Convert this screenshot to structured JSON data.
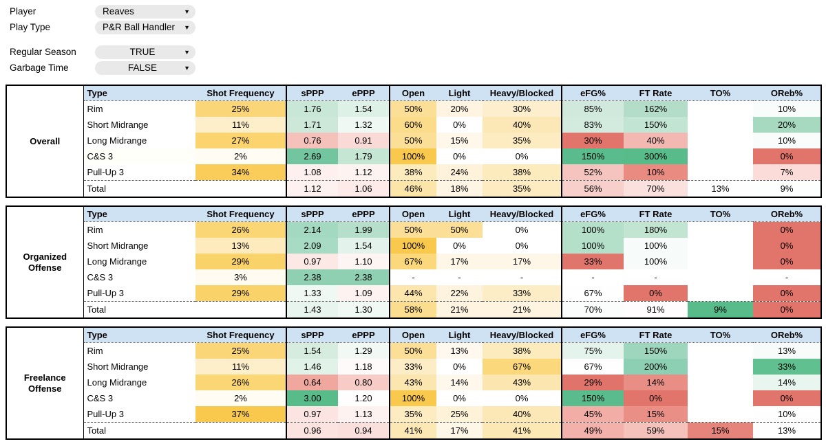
{
  "controls": {
    "items": [
      {
        "label": "Player",
        "value": "Reaves",
        "align": "left"
      },
      {
        "label": "Play Type",
        "value": "P&R Ball Handler",
        "align": "left"
      },
      {
        "label": "Regular Season",
        "value": "TRUE",
        "align": "center"
      },
      {
        "label": "Garbage Time",
        "value": "FALSE",
        "align": "center"
      }
    ],
    "dropdown_arrow_icon": "▼"
  },
  "colors": {
    "header_bg": "#cfe2f3",
    "positive_full": "#57bb8a",
    "negative_full": "#e1746b",
    "frequency_full": "#f9c94e",
    "dropdown_bg": "#e9e9e9"
  },
  "table_columns": [
    "Type",
    "Shot Frequency",
    "sPPP",
    "ePPP",
    "Open",
    "Light",
    "Heavy/Blocked",
    "eFG%",
    "FT Rate",
    "TO%",
    "OReb%"
  ],
  "tables": [
    {
      "section": "Overall",
      "rows": [
        {
          "cells": [
            [
              "Rim",
              "#ffffff"
            ],
            [
              "25%",
              "#fbd678"
            ],
            [
              "1.76",
              "#c9e7d6"
            ],
            [
              "1.54",
              "#def1e7"
            ],
            [
              "50%",
              "#fcdf96"
            ],
            [
              "20%",
              "#fef4e1"
            ],
            [
              "30%",
              "#fdefcd"
            ],
            [
              "85%",
              "#d0e9dc"
            ],
            [
              "162%",
              "#b3ddc9"
            ],
            [
              "",
              "#ffffff"
            ],
            [
              "10%",
              "#f8fcfa"
            ]
          ]
        },
        {
          "cells": [
            [
              "Short Midrange",
              "#ffffff"
            ],
            [
              "11%",
              "#fdefc9"
            ],
            [
              "1.71",
              "#cde8d9"
            ],
            [
              "1.32",
              "#eff8f3"
            ],
            [
              "60%",
              "#fbdc8b"
            ],
            [
              "0%",
              "#ffffff"
            ],
            [
              "40%",
              "#fce8b6"
            ],
            [
              "83%",
              "#d3ebde"
            ],
            [
              "150%",
              "#c2e4d2"
            ],
            [
              "",
              "#ffffff"
            ],
            [
              "20%",
              "#a6d9c0"
            ]
          ]
        },
        {
          "cells": [
            [
              "Long Midrange",
              "#ffffff"
            ],
            [
              "27%",
              "#fbd470"
            ],
            [
              "0.76",
              "#f4c1bb"
            ],
            [
              "0.91",
              "#f9dad6"
            ],
            [
              "50%",
              "#fcdf96"
            ],
            [
              "15%",
              "#fef7ea"
            ],
            [
              "35%",
              "#fdecc2"
            ],
            [
              "30%",
              "#e1746b"
            ],
            [
              "40%",
              "#f3b8b2"
            ],
            [
              "",
              "#ffffff"
            ],
            [
              "10%",
              "#f8fcfa"
            ]
          ]
        },
        {
          "cells": [
            [
              "C&S 3",
              "#fffffa"
            ],
            [
              "2%",
              "#fffcf4"
            ],
            [
              "2.69",
              "#72c59e"
            ],
            [
              "1.79",
              "#c6e6d4"
            ],
            [
              "100%",
              "#f9c94e"
            ],
            [
              "0%",
              "#ffffff"
            ],
            [
              "0%",
              "#ffffff"
            ],
            [
              "150%",
              "#5abc8c"
            ],
            [
              "300%",
              "#57bb8a"
            ],
            [
              "",
              "#ffffff"
            ],
            [
              "0%",
              "#e1746b"
            ]
          ]
        },
        {
          "cells": [
            [
              "Pull-Up 3",
              "#ffffff"
            ],
            [
              "34%",
              "#facd5b"
            ],
            [
              "1.08",
              "#fdf0ee"
            ],
            [
              "1.12",
              "#fdf3f1"
            ],
            [
              "38%",
              "#fcebbd"
            ],
            [
              "24%",
              "#fef2da"
            ],
            [
              "38%",
              "#fcebbd"
            ],
            [
              "52%",
              "#f5c4be"
            ],
            [
              "10%",
              "#ea8b81"
            ],
            [
              "",
              "#ffffff"
            ],
            [
              "7%",
              "#fbdcd8"
            ]
          ]
        },
        {
          "total": true,
          "cells": [
            [
              "Total",
              "#ffffff"
            ],
            [
              "",
              "#ffffff"
            ],
            [
              "1.12",
              "#fdf2f0"
            ],
            [
              "1.06",
              "#fcebe8"
            ],
            [
              "46%",
              "#fce5a8"
            ],
            [
              "18%",
              "#fef5e5"
            ],
            [
              "35%",
              "#fdecc2"
            ],
            [
              "56%",
              "#f7d0cb"
            ],
            [
              "70%",
              "#fae1dd"
            ],
            [
              "13%",
              "#fefefe"
            ],
            [
              "9%",
              "#fdfefe"
            ]
          ]
        }
      ]
    },
    {
      "section": "Organized Offense",
      "rows": [
        {
          "cells": [
            [
              "Rim",
              "#ffffff"
            ],
            [
              "26%",
              "#fbd675"
            ],
            [
              "2.14",
              "#a4d9c1"
            ],
            [
              "1.99",
              "#b5dfca"
            ],
            [
              "50%",
              "#fcdf96"
            ],
            [
              "50%",
              "#fcdf96"
            ],
            [
              "0%",
              "#ffffff"
            ],
            [
              "100%",
              "#b4dfc9"
            ],
            [
              "180%",
              "#c2e5d2"
            ],
            [
              "",
              "#ffffff"
            ],
            [
              "0%",
              "#e1746b"
            ]
          ]
        },
        {
          "cells": [
            [
              "Short Midrange",
              "#ffffff"
            ],
            [
              "13%",
              "#fdebbd"
            ],
            [
              "2.09",
              "#a8dbc3"
            ],
            [
              "1.54",
              "#e3f3eb"
            ],
            [
              "100%",
              "#f9c94e"
            ],
            [
              "0%",
              "#ffffff"
            ],
            [
              "0%",
              "#ffffff"
            ],
            [
              "100%",
              "#b4dfc9"
            ],
            [
              "100%",
              "#f7fbf9"
            ],
            [
              "",
              "#ffffff"
            ],
            [
              "0%",
              "#e1746b"
            ]
          ]
        },
        {
          "cells": [
            [
              "Long Midrange",
              "#ffffff"
            ],
            [
              "29%",
              "#fad26a"
            ],
            [
              "0.97",
              "#fce9e6"
            ],
            [
              "1.10",
              "#fdf5f3"
            ],
            [
              "67%",
              "#fbd87c"
            ],
            [
              "17%",
              "#fef6e7"
            ],
            [
              "17%",
              "#fef6e7"
            ],
            [
              "33%",
              "#e0756c"
            ],
            [
              "100%",
              "#f7fbf9"
            ],
            [
              "",
              "#ffffff"
            ],
            [
              "0%",
              "#e1746b"
            ]
          ]
        },
        {
          "cells": [
            [
              "C&S 3",
              "#ffffff"
            ],
            [
              "3%",
              "#fffbf0"
            ],
            [
              "2.38",
              "#8fd0b3"
            ],
            [
              "2.38",
              "#8fd0b3"
            ],
            [
              "-",
              "#ffffff"
            ],
            [
              "-",
              "#ffffff"
            ],
            [
              "-",
              "#ffffff"
            ],
            [
              "-",
              "#ffffff"
            ],
            [
              "-",
              "#ffffff"
            ],
            [
              "",
              "#ffffff"
            ],
            [
              "-",
              "#ffffff"
            ]
          ]
        },
        {
          "cells": [
            [
              "Pull-Up 3",
              "#ffffff"
            ],
            [
              "29%",
              "#fad26a"
            ],
            [
              "1.33",
              "#eff8f3"
            ],
            [
              "1.09",
              "#fdf2f0"
            ],
            [
              "44%",
              "#fce6ad"
            ],
            [
              "22%",
              "#fef3de"
            ],
            [
              "33%",
              "#fdedc6"
            ],
            [
              "67%",
              "#fefefe"
            ],
            [
              "0%",
              "#e1746b"
            ],
            [
              "",
              "#ffffff"
            ],
            [
              "0%",
              "#e1746b"
            ]
          ]
        },
        {
          "total": true,
          "cells": [
            [
              "Total",
              "#ffffff"
            ],
            [
              "",
              "#ffffff"
            ],
            [
              "1.43",
              "#e8f5ee"
            ],
            [
              "1.30",
              "#f1f9f5"
            ],
            [
              "58%",
              "#fbdd8f"
            ],
            [
              "21%",
              "#fef4e0"
            ],
            [
              "21%",
              "#fef4e0"
            ],
            [
              "70%",
              "#fbfdfc"
            ],
            [
              "91%",
              "#fefcfc"
            ],
            [
              "9%",
              "#57bb8a"
            ],
            [
              "0%",
              "#e1746b"
            ]
          ]
        }
      ]
    },
    {
      "section": "Freelance Offense",
      "rows": [
        {
          "cells": [
            [
              "Rim",
              "#ffffff"
            ],
            [
              "25%",
              "#fbd678"
            ],
            [
              "1.54",
              "#d5ecdf"
            ],
            [
              "1.29",
              "#f2f9f5"
            ],
            [
              "50%",
              "#fcdf96"
            ],
            [
              "13%",
              "#fef8ee"
            ],
            [
              "38%",
              "#fcebbd"
            ],
            [
              "75%",
              "#e4f3ec"
            ],
            [
              "150%",
              "#9ed6bd"
            ],
            [
              "",
              "#ffffff"
            ],
            [
              "13%",
              "#f7fbf9"
            ]
          ]
        },
        {
          "cells": [
            [
              "Short Midrange",
              "#ffffff"
            ],
            [
              "11%",
              "#fdefc9"
            ],
            [
              "1.46",
              "#e1f2e9"
            ],
            [
              "1.18",
              "#fefaf9"
            ],
            [
              "33%",
              "#fdedc6"
            ],
            [
              "0%",
              "#ffffff"
            ],
            [
              "67%",
              "#fbd87c"
            ],
            [
              "67%",
              "#fefefe"
            ],
            [
              "200%",
              "#8dcfb2"
            ],
            [
              "",
              "#ffffff"
            ],
            [
              "33%",
              "#61c090"
            ]
          ]
        },
        {
          "cells": [
            [
              "Long Midrange",
              "#ffffff"
            ],
            [
              "26%",
              "#fbd675"
            ],
            [
              "0.64",
              "#efa79e"
            ],
            [
              "0.80",
              "#f7ccc7"
            ],
            [
              "43%",
              "#fce6af"
            ],
            [
              "14%",
              "#fef7ec"
            ],
            [
              "43%",
              "#fce6af"
            ],
            [
              "29%",
              "#e0746b"
            ],
            [
              "14%",
              "#e98e84"
            ],
            [
              "",
              "#ffffff"
            ],
            [
              "14%",
              "#e9f5ef"
            ]
          ]
        },
        {
          "cells": [
            [
              "C&S 3",
              "#ffffff"
            ],
            [
              "2%",
              "#fffcf4"
            ],
            [
              "3.00",
              "#57bb8a"
            ],
            [
              "1.20",
              "#fefefe"
            ],
            [
              "100%",
              "#f9c94e"
            ],
            [
              "0%",
              "#ffffff"
            ],
            [
              "0%",
              "#ffffff"
            ],
            [
              "150%",
              "#5abc8c"
            ],
            [
              "0%",
              "#e1746b"
            ],
            [
              "",
              "#ffffff"
            ],
            [
              "0%",
              "#e1746b"
            ]
          ]
        },
        {
          "cells": [
            [
              "Pull-Up 3",
              "#ffffff"
            ],
            [
              "37%",
              "#f9c94e"
            ],
            [
              "0.97",
              "#fbe4e1"
            ],
            [
              "1.13",
              "#fdf2f0"
            ],
            [
              "35%",
              "#fdecc2"
            ],
            [
              "25%",
              "#fef2d8"
            ],
            [
              "40%",
              "#fce8b6"
            ],
            [
              "45%",
              "#f2aea6"
            ],
            [
              "15%",
              "#e98f86"
            ],
            [
              "",
              "#ffffff"
            ],
            [
              "10%",
              "#fdfefd"
            ]
          ]
        },
        {
          "total": true,
          "cells": [
            [
              "Total",
              "#ffffff"
            ],
            [
              "",
              "#ffffff"
            ],
            [
              "0.96",
              "#fbe3e0"
            ],
            [
              "0.94",
              "#fae0dc"
            ],
            [
              "41%",
              "#fce8b4"
            ],
            [
              "17%",
              "#fef6e7"
            ],
            [
              "41%",
              "#fce8b4"
            ],
            [
              "49%",
              "#f2b1aa"
            ],
            [
              "59%",
              "#f5c1bb"
            ],
            [
              "15%",
              "#e5847b"
            ],
            [
              "13%",
              "#fefefe"
            ]
          ]
        }
      ]
    }
  ]
}
